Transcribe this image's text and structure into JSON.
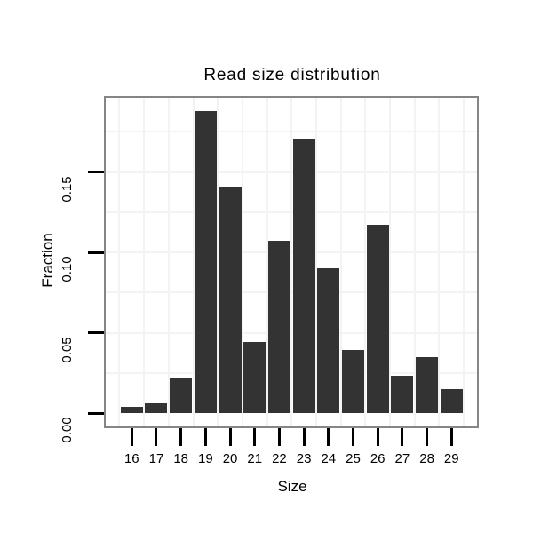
{
  "chart_data": {
    "type": "bar",
    "title": "Read size distribution",
    "xlabel": "Size",
    "ylabel": "Fraction",
    "categories": [
      "16",
      "17",
      "18",
      "19",
      "20",
      "21",
      "22",
      "23",
      "24",
      "25",
      "26",
      "27",
      "28",
      "29"
    ],
    "values": [
      0.004,
      0.006,
      0.022,
      0.188,
      0.141,
      0.044,
      0.107,
      0.17,
      0.09,
      0.039,
      0.117,
      0.023,
      0.035,
      0.015
    ],
    "ylim": [
      0,
      0.196
    ],
    "yticks": [
      {
        "label": "0.00",
        "value": 0.0
      },
      {
        "label": "0.05",
        "value": 0.05
      },
      {
        "label": "0.10",
        "value": 0.1
      },
      {
        "label": "0.15",
        "value": 0.15
      }
    ],
    "grid": true,
    "grid_minor_step": 0.025,
    "legend": "none",
    "colors": {
      "bar": "#333333",
      "grid": "#f3f3f3",
      "panel_border": "#858585",
      "tick": "#000000",
      "text": "#000000",
      "background": "#ffffff"
    }
  }
}
